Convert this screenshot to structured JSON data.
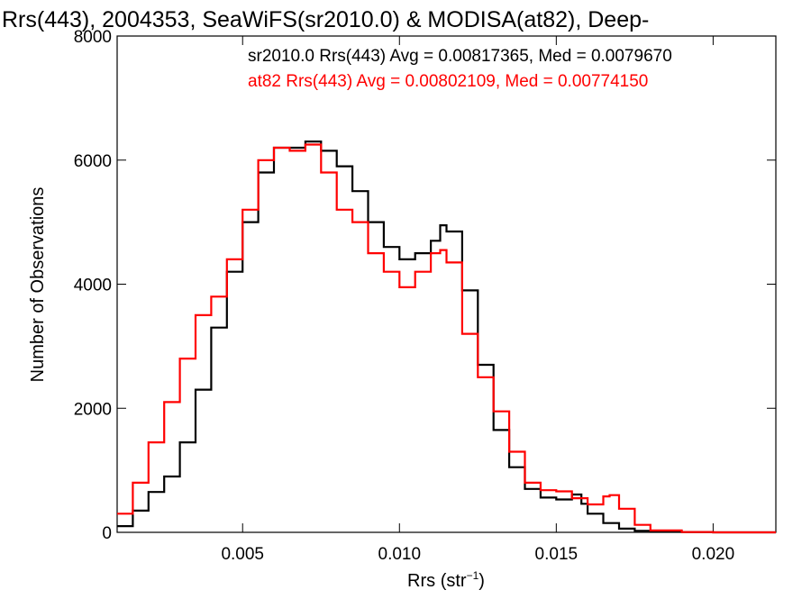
{
  "chart_data": {
    "type": "line",
    "title": "Rrs(443), 2004353, SeaWiFS(sr2010.0) & MODISA(at82), Deep-",
    "xlabel_main": "Rrs (str",
    "xlabel_sup": "−1",
    "xlabel_tail": ")",
    "ylabel": "Number of Observations",
    "xlim": [
      0.001,
      0.022
    ],
    "ylim": [
      0,
      8000
    ],
    "x_ticks": [
      0.005,
      0.01,
      0.015,
      0.02
    ],
    "x_tick_labels": [
      "0.005",
      "0.010",
      "0.015",
      "0.020"
    ],
    "y_ticks": [
      0,
      2000,
      4000,
      6000,
      8000
    ],
    "y_tick_labels": [
      "0",
      "2000",
      "4000",
      "6000",
      "8000"
    ],
    "grid": false,
    "legend_placement": "top",
    "annotations": [
      {
        "text": "sr2010.0 Rrs(443) Avg = 0.00817365, Med = 0.0079670",
        "color": "#000000"
      },
      {
        "text": "at82 Rrs(443) Avg = 0.00802109, Med = 0.00774150",
        "color": "#ff0000"
      }
    ],
    "series": [
      {
        "color": "#000000",
        "x": [
          0.001,
          0.0015,
          0.002,
          0.0025,
          0.003,
          0.0035,
          0.004,
          0.0045,
          0.005,
          0.0055,
          0.006,
          0.0065,
          0.007,
          0.0075,
          0.008,
          0.0085,
          0.009,
          0.0095,
          0.01,
          0.0105,
          0.011,
          0.0113,
          0.0115,
          0.012,
          0.0125,
          0.013,
          0.0135,
          0.014,
          0.0145,
          0.015,
          0.0155,
          0.0158,
          0.016,
          0.0165,
          0.017,
          0.0175,
          0.018,
          0.019,
          0.02,
          0.022
        ],
        "y": [
          100,
          350,
          650,
          900,
          1450,
          2300,
          3300,
          4200,
          5000,
          5800,
          6200,
          6200,
          6300,
          6150,
          5900,
          5500,
          5000,
          4600,
          4400,
          4500,
          4700,
          4950,
          4850,
          3900,
          2700,
          1650,
          1050,
          700,
          560,
          530,
          610,
          460,
          300,
          150,
          60,
          25,
          10,
          5,
          0,
          0
        ]
      },
      {
        "color": "#ff0000",
        "x": [
          0.001,
          0.0015,
          0.002,
          0.0025,
          0.003,
          0.0035,
          0.004,
          0.0045,
          0.005,
          0.0055,
          0.006,
          0.0065,
          0.007,
          0.0075,
          0.008,
          0.0085,
          0.009,
          0.0095,
          0.01,
          0.0105,
          0.011,
          0.0113,
          0.0115,
          0.012,
          0.0125,
          0.013,
          0.0135,
          0.014,
          0.0145,
          0.015,
          0.0155,
          0.016,
          0.0165,
          0.0167,
          0.017,
          0.0175,
          0.018,
          0.019,
          0.02,
          0.022
        ],
        "y": [
          300,
          800,
          1450,
          2100,
          2800,
          3500,
          3800,
          4400,
          5200,
          6000,
          6200,
          6150,
          6250,
          5800,
          5200,
          5000,
          4500,
          4200,
          3950,
          4200,
          4500,
          4550,
          4350,
          3200,
          2500,
          1950,
          1300,
          800,
          680,
          660,
          550,
          450,
          580,
          600,
          380,
          120,
          30,
          5,
          0,
          0
        ]
      }
    ]
  }
}
